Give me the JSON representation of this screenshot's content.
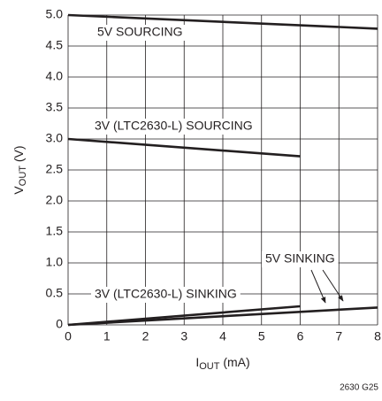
{
  "chart_data": {
    "type": "line",
    "ylabel": [
      "V",
      "OUT",
      " (V)"
    ],
    "xlabel": [
      "I",
      "OUT",
      " (mA)"
    ],
    "footnote": "2630 G25",
    "xlim": [
      0,
      8
    ],
    "xticks": [
      0,
      1,
      2,
      3,
      4,
      5,
      6,
      7,
      8
    ],
    "ylim": [
      0,
      5
    ],
    "yticks": [
      0,
      0.5,
      {
        "value": 1,
        "label": "1.0"
      },
      1.5,
      {
        "value": 2,
        "label": "2.0"
      },
      2.5,
      {
        "value": 3,
        "label": "3.0"
      },
      3.5,
      {
        "value": 4,
        "label": "4.0"
      },
      4.5,
      {
        "value": 5,
        "label": "5.0"
      }
    ],
    "grid": true,
    "series": [
      {
        "name": "5V SOURCING",
        "color": "#231f20",
        "x": [
          0,
          8
        ],
        "values": [
          5.0,
          4.78
        ]
      },
      {
        "name": "3V (LTC2630-L) SOURCING",
        "color": "#231f20",
        "x": [
          0,
          6
        ],
        "values": [
          3.0,
          2.72
        ]
      },
      {
        "name": "5V SINKING",
        "color": "#231f20",
        "x": [
          0,
          8
        ],
        "values": [
          0,
          0.28
        ]
      },
      {
        "name": "3V (LTC2630-L) SINKING",
        "color": "#231f20",
        "x": [
          0,
          6
        ],
        "values": [
          0,
          0.3
        ]
      }
    ]
  }
}
